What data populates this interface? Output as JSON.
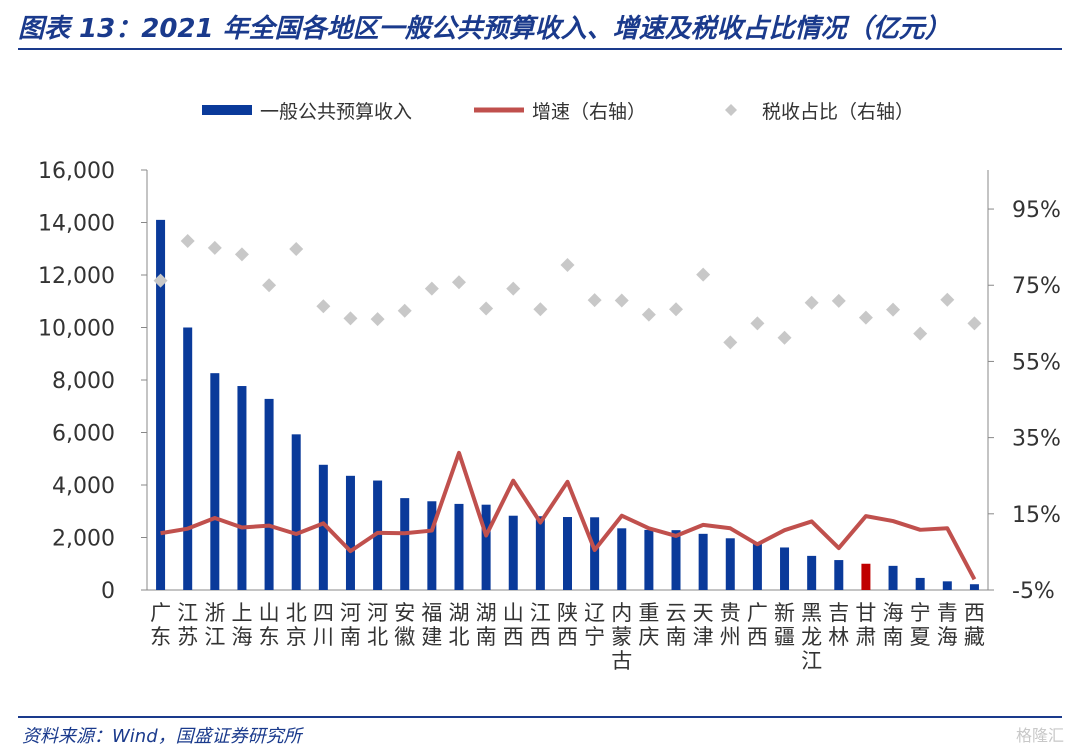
{
  "title": "图表 13：2021 年全国各地区一般公共预算收入、增速及税收占比情况（亿元）",
  "source": "资料来源：Wind，国盛证券研究所",
  "watermark": "格隆汇",
  "colors": {
    "bar": "#0a3a9a",
    "bar_highlight": "#c00000",
    "line": "#c0504d",
    "scatter": "#c8c8c8",
    "axis": "#888888",
    "title": "#1a3a8c"
  },
  "chart_data": {
    "type": "bar",
    "title": "",
    "categories": [
      "广东",
      "江苏",
      "浙江",
      "上海",
      "山东",
      "北京",
      "四川",
      "河南",
      "河北",
      "安徽",
      "福建",
      "湖北",
      "湖南",
      "山西",
      "江西",
      "陕西",
      "辽宁",
      "内蒙古",
      "重庆",
      "云南",
      "天津",
      "贵州",
      "广西",
      "新疆",
      "黑龙江",
      "吉林",
      "甘肃",
      "海南",
      "宁夏",
      "青海",
      "西藏"
    ],
    "highlight_category": "甘肃",
    "series": [
      {
        "name": "一般公共预算收入",
        "axis": "left",
        "type": "bar",
        "values": [
          14100,
          10000,
          8260,
          7770,
          7280,
          5930,
          4770,
          4350,
          4170,
          3500,
          3380,
          3280,
          3250,
          2830,
          2810,
          2780,
          2770,
          2350,
          2290,
          2280,
          2140,
          1970,
          1800,
          1620,
          1300,
          1140,
          1000,
          920,
          460,
          330,
          220
        ]
      },
      {
        "name": "增速（右轴）",
        "axis": "right",
        "type": "line",
        "values": [
          0.099,
          0.111,
          0.139,
          0.114,
          0.119,
          0.097,
          0.125,
          0.052,
          0.1,
          0.099,
          0.106,
          0.31,
          0.093,
          0.237,
          0.127,
          0.234,
          0.055,
          0.145,
          0.112,
          0.092,
          0.121,
          0.112,
          0.07,
          0.107,
          0.13,
          0.06,
          0.144,
          0.131,
          0.108,
          0.112,
          -0.022
        ]
      },
      {
        "name": "税收占比（右轴）",
        "axis": "right",
        "type": "scatter",
        "values": [
          0.762,
          0.866,
          0.848,
          0.831,
          0.75,
          0.845,
          0.695,
          0.663,
          0.661,
          0.683,
          0.741,
          0.758,
          0.689,
          0.741,
          0.687,
          0.803,
          0.711,
          0.71,
          0.673,
          0.687,
          0.778,
          0.6,
          0.65,
          0.612,
          0.704,
          0.709,
          0.665,
          0.686,
          0.623,
          0.712,
          0.65
        ]
      }
    ],
    "ylim_left": [
      0,
      16000
    ],
    "yticks_left": [
      "0",
      "2,000",
      "4,000",
      "6,000",
      "8,000",
      "10,000",
      "12,000",
      "14,000",
      "16,000"
    ],
    "ylim_right": [
      -0.05,
      1.0
    ],
    "yticks_right": [
      "-5%",
      "15%",
      "35%",
      "55%",
      "75%",
      "95%"
    ],
    "legend_position": "top",
    "grid": false
  }
}
